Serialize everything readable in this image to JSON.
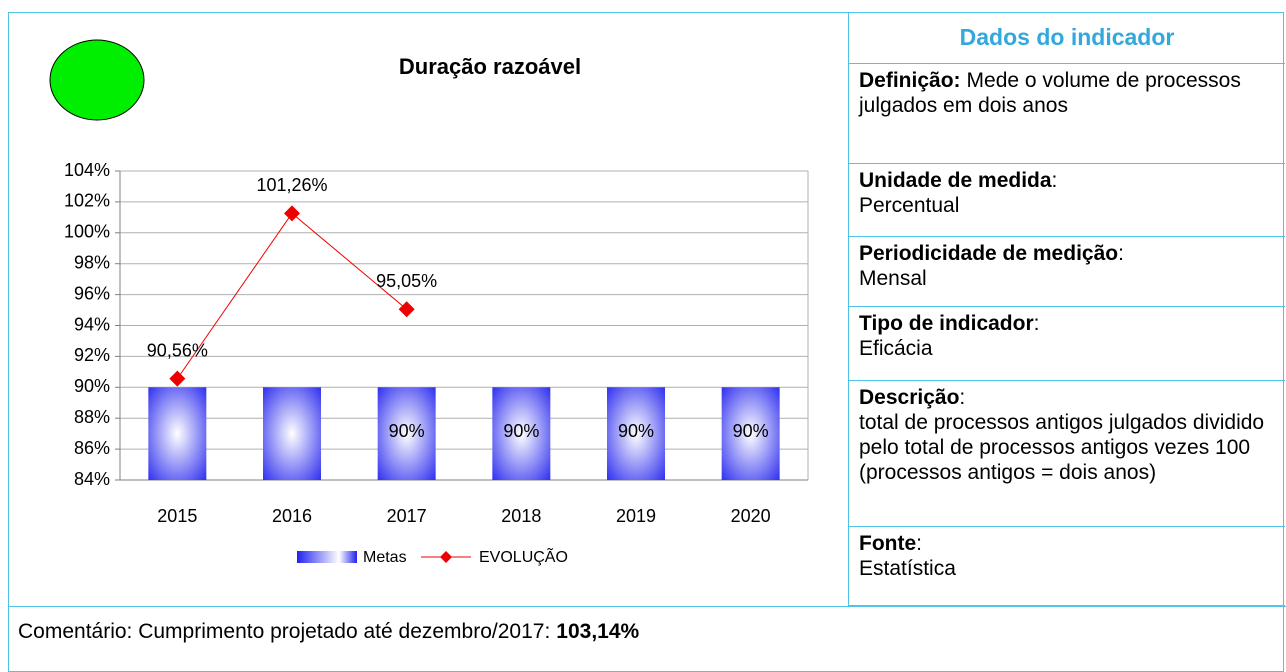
{
  "chart_data": {
    "type": "bar-line",
    "title": "Duração razoável",
    "categories": [
      "2015",
      "2016",
      "2017",
      "2018",
      "2019",
      "2020"
    ],
    "series": [
      {
        "name": "Metas",
        "type": "bar",
        "color": "#2222ee",
        "values": [
          90,
          90,
          90,
          90,
          90,
          90
        ],
        "value_labels": [
          null,
          null,
          "90%",
          "90%",
          "90%",
          "90%"
        ]
      },
      {
        "name": "EVOLUÇÃO",
        "type": "line",
        "color": "#ee0000",
        "values": [
          90.56,
          101.26,
          95.05,
          null,
          null,
          null
        ],
        "value_labels": [
          "90,56%",
          "101,26%",
          "95,05%",
          null,
          null,
          null
        ]
      }
    ],
    "ylim": [
      84,
      104
    ],
    "yticks": [
      {
        "value": 84,
        "label": "84%"
      },
      {
        "value": 86,
        "label": "86%"
      },
      {
        "value": 88,
        "label": "88%"
      },
      {
        "value": 90,
        "label": "90%"
      },
      {
        "value": 92,
        "label": "92%"
      },
      {
        "value": 94,
        "label": "94%"
      },
      {
        "value": 96,
        "label": "96%"
      },
      {
        "value": 98,
        "label": "98%"
      },
      {
        "value": 100,
        "label": "100%"
      },
      {
        "value": 102,
        "label": "102%"
      },
      {
        "value": 104,
        "label": "104%"
      }
    ],
    "grid": true,
    "legend": "bottom",
    "status_color": "#00ee00"
  },
  "panel": {
    "title": "Dados do indicador",
    "items": [
      {
        "label": "Definição:",
        "text": "Mede o volume de processos julgados em dois anos"
      },
      {
        "label": "Unidade de medida",
        "sep": ":",
        "text": "Percentual"
      },
      {
        "label": "Periodicidade de medição",
        "sep": ":",
        "text": "Mensal"
      },
      {
        "label": "Tipo de indicador",
        "sep": ":",
        "text": "Eficácia"
      },
      {
        "label": "Descrição",
        "sep": ":",
        "text": "total de processos antigos julgados dividido pelo total de processos antigos vezes 100 (processos antigos = dois anos)"
      },
      {
        "label": "Fonte",
        "sep": ":",
        "text": "Estatística"
      }
    ]
  },
  "comment": {
    "text": "Comentário: Cumprimento projetado até dezembro/2017:",
    "value": "103,14%"
  }
}
